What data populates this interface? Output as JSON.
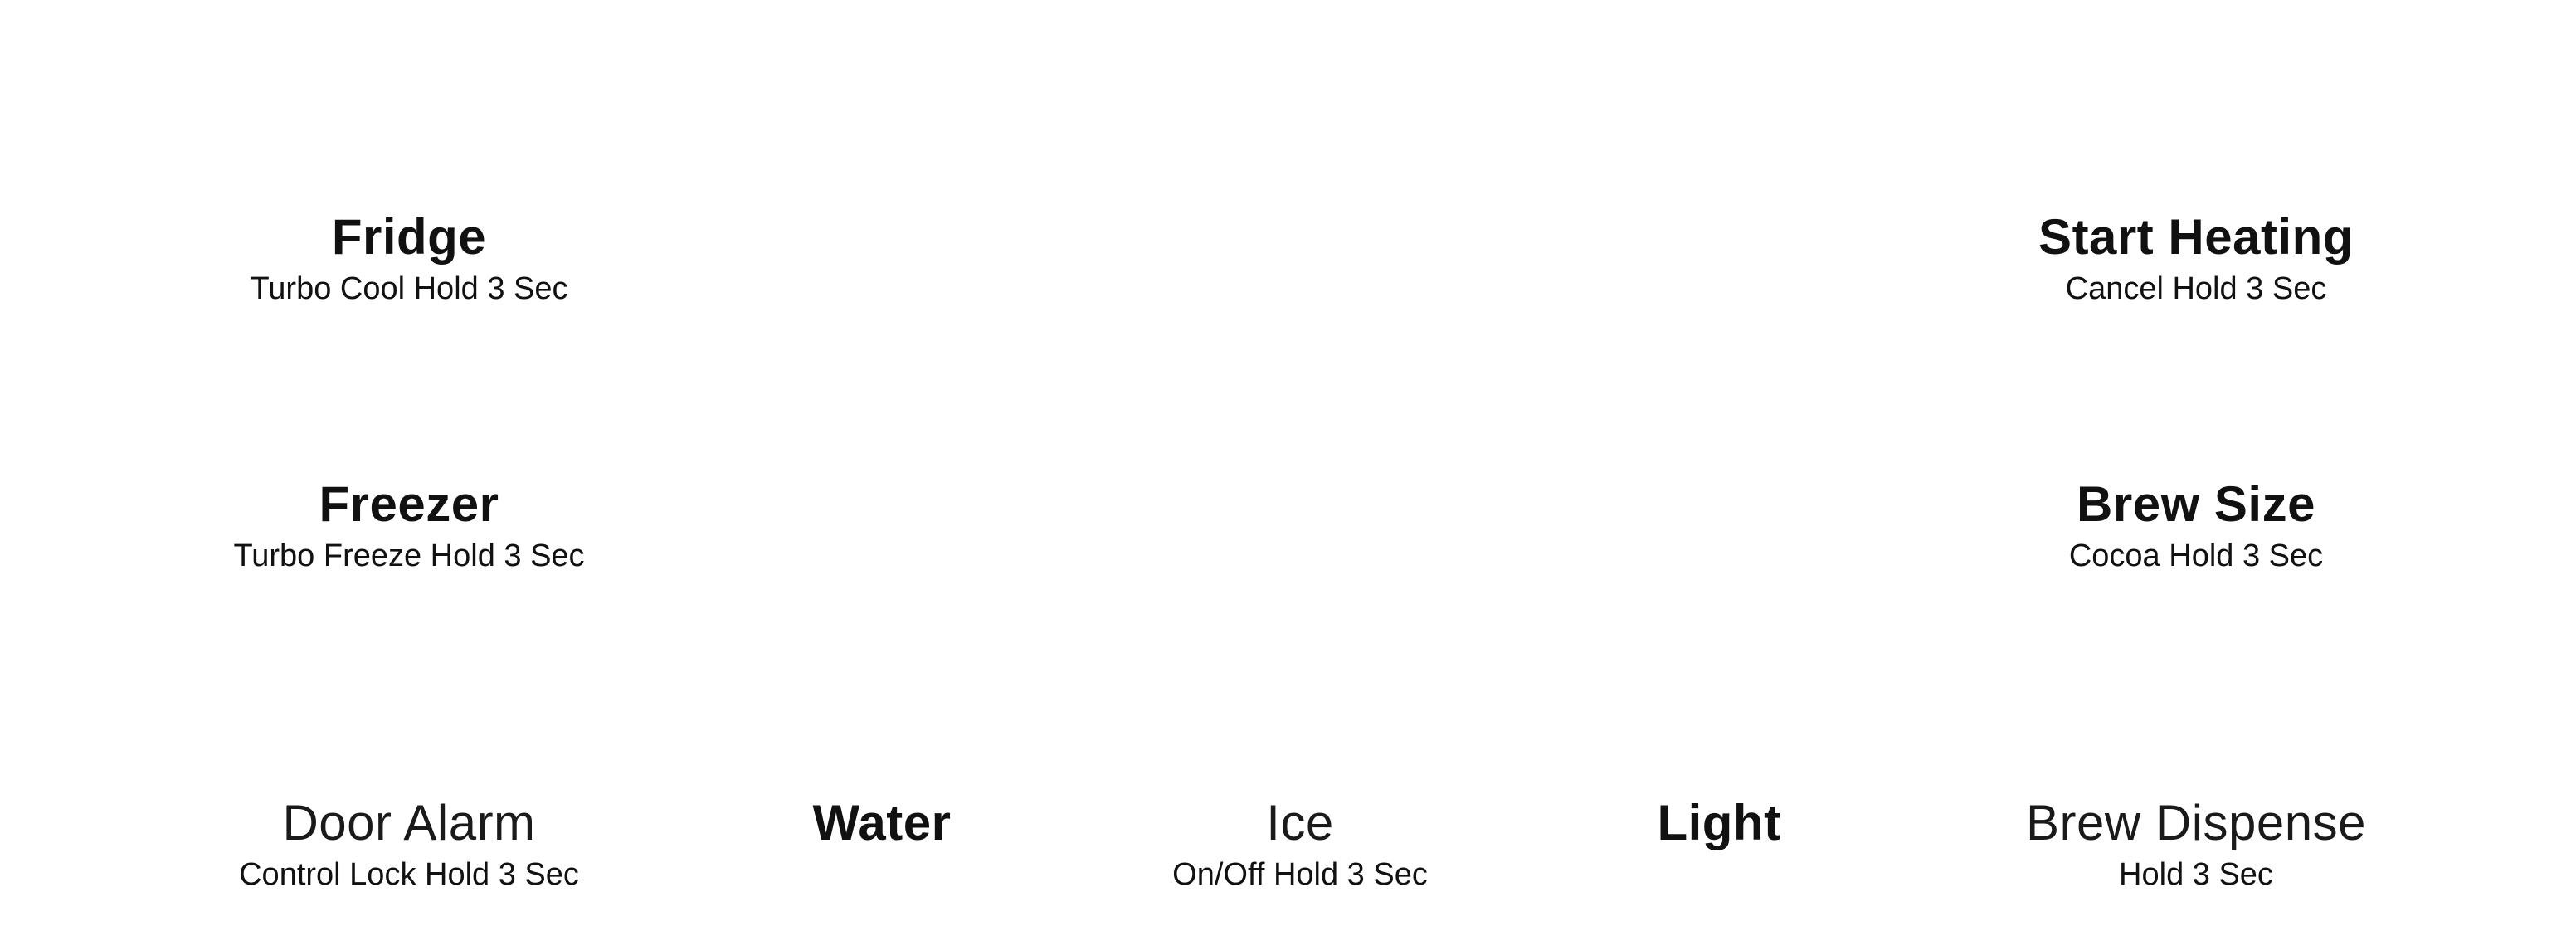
{
  "controls": {
    "fridge": {
      "label": "Fridge",
      "hold": "Turbo Cool Hold 3 Sec"
    },
    "start_heating": {
      "label": "Start Heating",
      "hold": "Cancel Hold 3 Sec"
    },
    "freezer": {
      "label": "Freezer",
      "hold": "Turbo Freeze Hold 3 Sec"
    },
    "brew_size": {
      "label": "Brew Size",
      "hold": "Cocoa Hold 3 Sec"
    },
    "door_alarm": {
      "label": "Door Alarm",
      "hold": "Control Lock Hold 3 Sec"
    },
    "water": {
      "label": "Water"
    },
    "ice": {
      "label": "Ice",
      "hold": "On/Off Hold 3 Sec"
    },
    "light": {
      "label": "Light"
    },
    "brew_dispense": {
      "label": "Brew Dispense",
      "hold": "Hold 3 Sec"
    }
  }
}
